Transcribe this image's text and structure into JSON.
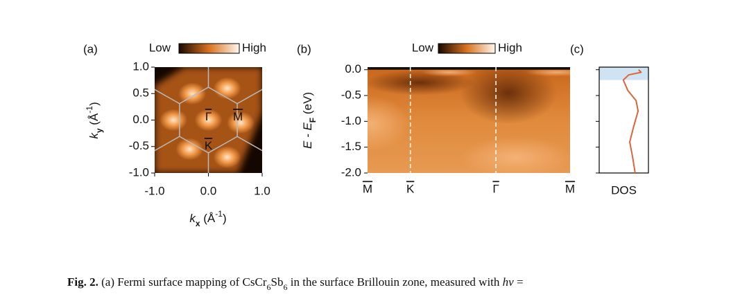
{
  "chart_data": [
    {
      "type": "heatmap",
      "panel_label": "(a)",
      "colorbar": {
        "low": "Low",
        "high": "High"
      },
      "xlabel": [
        "k",
        "x",
        " (Å",
        "-1",
        ")"
      ],
      "ylabel": [
        "k",
        "y",
        " (Å",
        "-1",
        ")"
      ],
      "xlim": [
        -1,
        1
      ],
      "ylim": [
        -1,
        1
      ],
      "xticks": [
        {
          "value": -1,
          "label": "-1.0"
        },
        {
          "value": 0,
          "label": "0.0"
        },
        {
          "value": 1,
          "label": "1.0"
        }
      ],
      "yticks": [
        {
          "value": -1,
          "label": "-1.0"
        },
        {
          "value": -0.5,
          "label": "-0.5"
        },
        {
          "value": 0,
          "label": "0.0"
        },
        {
          "value": 0.5,
          "label": "0.5"
        },
        {
          "value": 1,
          "label": "1.0"
        }
      ],
      "points": [
        "Γ",
        "M",
        "K"
      ]
    },
    {
      "type": "heatmap",
      "panel_label": "(b)",
      "colorbar": {
        "low": "Low",
        "high": "High"
      },
      "ylabel": [
        "E",
        " - E",
        "F",
        " (eV)"
      ],
      "categories": [
        "M",
        "K",
        "Γ",
        "M"
      ],
      "x": [
        0,
        0.577,
        1.732,
        2.732
      ],
      "xlim": [
        0,
        2.732
      ],
      "dashed": [
        1,
        2
      ],
      "ylim": [
        -2.0,
        0.05
      ],
      "yticks": [
        {
          "value": 0,
          "label": "0.0"
        },
        {
          "value": -0.5,
          "label": "-0.5"
        },
        {
          "value": -1,
          "label": "-1.0"
        },
        {
          "value": -1.5,
          "label": "-1.5"
        },
        {
          "value": -2,
          "label": "-2.0"
        }
      ]
    },
    {
      "type": "line",
      "panel_label": "(c)",
      "xlabel": "DOS",
      "color": "#d9653b",
      "x": [
        0.0,
        -0.05,
        -0.1,
        -0.2,
        -0.4,
        -0.6,
        -0.8,
        -1.1,
        -1.4,
        -1.7,
        -2.0
      ],
      "values": [
        0.8,
        0.85,
        0.6,
        0.49,
        0.58,
        0.75,
        0.79,
        0.7,
        0.62,
        0.68,
        0.73
      ],
      "xlim": [
        0,
        1
      ],
      "ylim": [
        -2.0,
        0.05
      ],
      "yticks": [
        0,
        -0.5,
        -1,
        -1.5,
        -2
      ],
      "highlight": [
        -0.2,
        0.05
      ]
    }
  ],
  "caption": {
    "label": "Fig. 2.",
    "parts": [
      " (a) Fermi surface mapping of CsCr",
      "6",
      "Sb",
      "6",
      " in the surface Brillouin zone, measured with ",
      "hν",
      " ="
    ]
  }
}
